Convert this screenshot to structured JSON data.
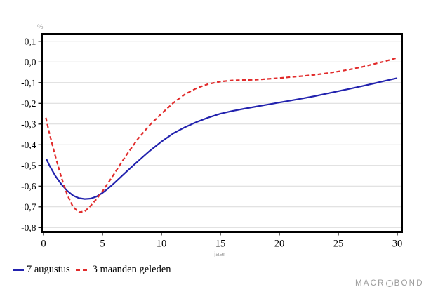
{
  "chart": {
    "unit_label": "%",
    "x_axis_title": "jaar",
    "branding": {
      "pre": "MACR",
      "post": "BOND"
    },
    "colors": {
      "grid": "#d9d9d9",
      "frame": "#000000",
      "tick_label": "#000000",
      "axis_title_gray": "#a6a6a6",
      "branding_gray": "#9b9b9b"
    }
  },
  "chart_data": {
    "type": "line",
    "title": "",
    "xlabel": "jaar",
    "ylabel": "%",
    "xlim": [
      0,
      30
    ],
    "ylim": [
      -0.8,
      0.1
    ],
    "grid": "horizontal",
    "legend_position": "bottom-left",
    "x_ticks": [
      {
        "v": 0,
        "label": "0"
      },
      {
        "v": 5,
        "label": "5"
      },
      {
        "v": 10,
        "label": "10"
      },
      {
        "v": 15,
        "label": "15"
      },
      {
        "v": 20,
        "label": "20"
      },
      {
        "v": 25,
        "label": "25"
      },
      {
        "v": 30,
        "label": "30"
      }
    ],
    "y_ticks": [
      {
        "v": 0.1,
        "label": "0,1"
      },
      {
        "v": 0.0,
        "label": "0,0"
      },
      {
        "v": -0.1,
        "label": "-0,1"
      },
      {
        "v": -0.2,
        "label": "-0,2"
      },
      {
        "v": -0.3,
        "label": "-0,3"
      },
      {
        "v": -0.4,
        "label": "-0,4"
      },
      {
        "v": -0.5,
        "label": "-0,5"
      },
      {
        "v": -0.6,
        "label": "-0,6"
      },
      {
        "v": -0.7,
        "label": "-0,7"
      },
      {
        "v": -0.8,
        "label": "-0,8"
      }
    ],
    "series": [
      {
        "name": "7 augustus",
        "color": "#2222ae",
        "line_style": "solid",
        "x": [
          0.25,
          0.5,
          1,
          1.5,
          2,
          2.5,
          3,
          3.5,
          4,
          4.5,
          5,
          5.5,
          6,
          7,
          8,
          9,
          10,
          11,
          12,
          13,
          14,
          15,
          16,
          17,
          18,
          19,
          20,
          21,
          22,
          23,
          24,
          25,
          26,
          27,
          28,
          29,
          30
        ],
        "y": [
          -0.47,
          -0.5,
          -0.55,
          -0.59,
          -0.622,
          -0.645,
          -0.658,
          -0.662,
          -0.66,
          -0.65,
          -0.633,
          -0.61,
          -0.585,
          -0.532,
          -0.48,
          -0.43,
          -0.385,
          -0.345,
          -0.315,
          -0.29,
          -0.268,
          -0.25,
          -0.237,
          -0.226,
          -0.216,
          -0.206,
          -0.196,
          -0.186,
          -0.176,
          -0.165,
          -0.153,
          -0.141,
          -0.129,
          -0.117,
          -0.104,
          -0.091,
          -0.078
        ]
      },
      {
        "name": "3 maanden geleden",
        "color": "#e12b2b",
        "line_style": "dashed",
        "x": [
          0.2,
          0.5,
          1,
          1.5,
          2,
          2.5,
          3,
          3.5,
          4,
          4.5,
          5,
          5.5,
          6,
          7,
          8,
          9,
          10,
          11,
          12,
          13,
          14,
          15,
          16,
          17,
          18,
          19,
          20,
          21,
          22,
          23,
          24,
          25,
          26,
          27,
          28,
          29,
          30
        ],
        "y": [
          -0.27,
          -0.345,
          -0.455,
          -0.555,
          -0.64,
          -0.7,
          -0.726,
          -0.722,
          -0.695,
          -0.662,
          -0.625,
          -0.583,
          -0.54,
          -0.452,
          -0.372,
          -0.305,
          -0.25,
          -0.198,
          -0.156,
          -0.126,
          -0.106,
          -0.095,
          -0.089,
          -0.087,
          -0.086,
          -0.082,
          -0.078,
          -0.073,
          -0.068,
          -0.062,
          -0.055,
          -0.046,
          -0.036,
          -0.024,
          -0.01,
          0.004,
          0.02
        ]
      }
    ]
  }
}
